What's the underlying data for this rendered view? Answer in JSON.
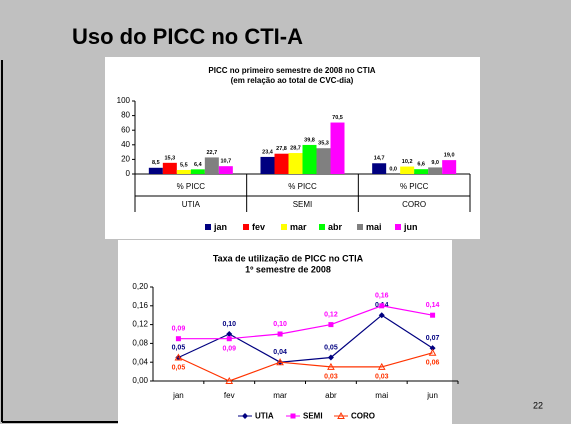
{
  "header": {
    "title": "Uso do PICC no CTI-A",
    "page_number": "22"
  },
  "chart_data": [
    {
      "type": "bar",
      "title": "PICC no primeiro semestre de 2008 no CTIA",
      "subtitle": "(em relação ao total de CVC-dia)",
      "categories": [
        "UTIA",
        "SEMI",
        "CORO"
      ],
      "subcategories": [
        "% PICC",
        "% PICC",
        "% PICC"
      ],
      "ylim": [
        0,
        100
      ],
      "yticks": [
        0,
        20,
        40,
        60,
        80,
        100
      ],
      "series": [
        {
          "name": "jan",
          "color": "#000080",
          "values": [
            8.5,
            23.4,
            14.7
          ],
          "value_labels": [
            "8,5",
            "23,4",
            "14,7"
          ]
        },
        {
          "name": "fev",
          "color": "#ff0000",
          "values": [
            15.3,
            27.8,
            0.0
          ],
          "value_labels": [
            "15,3",
            "27,8",
            "0,0"
          ]
        },
        {
          "name": "mar",
          "color": "#ffff00",
          "values": [
            5.5,
            28.7,
            10.2
          ],
          "value_labels": [
            "5,5",
            "28,7",
            "10,2"
          ]
        },
        {
          "name": "abr",
          "color": "#00ff00",
          "values": [
            6.4,
            39.8,
            6.6
          ],
          "value_labels": [
            "6,4",
            "39,8",
            "6,6"
          ]
        },
        {
          "name": "mai",
          "color": "#808080",
          "values": [
            22.7,
            35.3,
            9.0
          ],
          "value_labels": [
            "22,7",
            "35,3",
            "9,0"
          ]
        },
        {
          "name": "jun",
          "color": "#ff00ff",
          "values": [
            10.7,
            70.5,
            19.0
          ],
          "value_labels": [
            "10,7",
            "70,5",
            "19,0"
          ]
        }
      ]
    },
    {
      "type": "line",
      "title": "Taxa de utilização de PICC no CTIA",
      "subtitle": "1º semestre de 2008",
      "categories": [
        "jan",
        "fev",
        "mar",
        "abr",
        "mai",
        "jun"
      ],
      "ylim": [
        0,
        0.2
      ],
      "yticks": [
        {
          "value": 0,
          "label": "0,00"
        },
        {
          "value": 0.04,
          "label": "0,04"
        },
        {
          "value": 0.08,
          "label": "0,08"
        },
        {
          "value": 0.12,
          "label": "0,12"
        },
        {
          "value": 0.16,
          "label": "0,16"
        },
        {
          "value": 0.2,
          "label": "0,20"
        }
      ],
      "series": [
        {
          "name": "UTIA",
          "color": "#000080",
          "marker": "diamond",
          "values": [
            0.05,
            0.1,
            0.04,
            0.05,
            0.14,
            0.07
          ],
          "value_labels": [
            "0,05",
            "0,10",
            "0,04",
            "0,05",
            "0,14",
            "0,07"
          ]
        },
        {
          "name": "SEMI",
          "color": "#ff00ff",
          "marker": "square",
          "values": [
            0.09,
            0.09,
            0.1,
            0.12,
            0.16,
            0.14
          ],
          "value_labels": [
            "0,09",
            "0,09",
            "0,10",
            "0,12",
            "0,16",
            "0,14"
          ]
        },
        {
          "name": "CORO",
          "color": "#ff3300",
          "marker": "triangle",
          "values": [
            0.05,
            0,
            0.04,
            0.03,
            0.03,
            0.06
          ],
          "value_labels": [
            "0,05",
            null,
            null,
            "0,03",
            "0,03",
            "0,06"
          ]
        }
      ]
    }
  ]
}
